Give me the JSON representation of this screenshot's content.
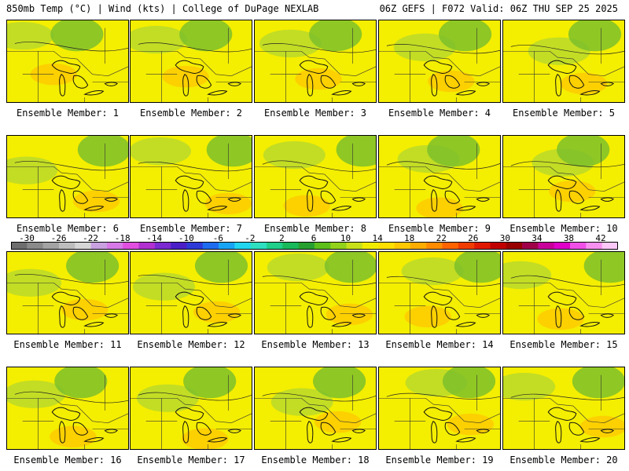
{
  "header": {
    "left": "850mb Temp (°C) | Wind (kts) | College of DuPage NEXLAB",
    "right": "06Z GEFS | F072 Valid: 06Z THU SEP 25 2025"
  },
  "panels": [
    {
      "member": 1,
      "caption": "Ensemble Member: 1"
    },
    {
      "member": 2,
      "caption": "Ensemble Member: 2"
    },
    {
      "member": 3,
      "caption": "Ensemble Member: 3"
    },
    {
      "member": 4,
      "caption": "Ensemble Member: 4"
    },
    {
      "member": 5,
      "caption": "Ensemble Member: 5"
    },
    {
      "member": 6,
      "caption": "Ensemble Member: 6"
    },
    {
      "member": 7,
      "caption": "Ensemble Member: 7"
    },
    {
      "member": 8,
      "caption": "Ensemble Member: 8"
    },
    {
      "member": 9,
      "caption": "Ensemble Member: 9"
    },
    {
      "member": 10,
      "caption": "Ensemble Member: 10"
    },
    {
      "member": 11,
      "caption": "Ensemble Member: 11"
    },
    {
      "member": 12,
      "caption": "Ensemble Member: 12"
    },
    {
      "member": 13,
      "caption": "Ensemble Member: 13"
    },
    {
      "member": 14,
      "caption": "Ensemble Member: 14"
    },
    {
      "member": 15,
      "caption": "Ensemble Member: 15"
    },
    {
      "member": 16,
      "caption": "Ensemble Member: 16"
    },
    {
      "member": 17,
      "caption": "Ensemble Member: 17"
    },
    {
      "member": 18,
      "caption": "Ensemble Member: 18"
    },
    {
      "member": 19,
      "caption": "Ensemble Member: 19"
    },
    {
      "member": 20,
      "caption": "Ensemble Member: 20"
    }
  ],
  "colorbar": {
    "labels": [
      "-30",
      "-26",
      "-22",
      "-18",
      "-14",
      "-10",
      "-6",
      "-2",
      "2",
      "6",
      "10",
      "14",
      "18",
      "22",
      "26",
      "30",
      "34",
      "38",
      "42"
    ],
    "colors": [
      "#6e6e6e",
      "#8a8a8a",
      "#a3a3a3",
      "#bdbdbd",
      "#d6d6d6",
      "#c9a0e0",
      "#d77ae8",
      "#e04fe0",
      "#b030d0",
      "#7a2ad0",
      "#4b1fc8",
      "#2d3ad8",
      "#1e6cf0",
      "#18a4f5",
      "#22d6f0",
      "#2ee0c0",
      "#1fcf8a",
      "#19b85a",
      "#28a030",
      "#5cbf1a",
      "#92d21a",
      "#c8e01a",
      "#f0ec00",
      "#ffe000",
      "#ffc800",
      "#ffac00",
      "#ff8c00",
      "#ff6400",
      "#f03c00",
      "#e01800",
      "#c00000",
      "#980000",
      "#a0004a",
      "#c8009a",
      "#e000c8",
      "#f050e8",
      "#f890f0",
      "#fcc8f8"
    ]
  }
}
